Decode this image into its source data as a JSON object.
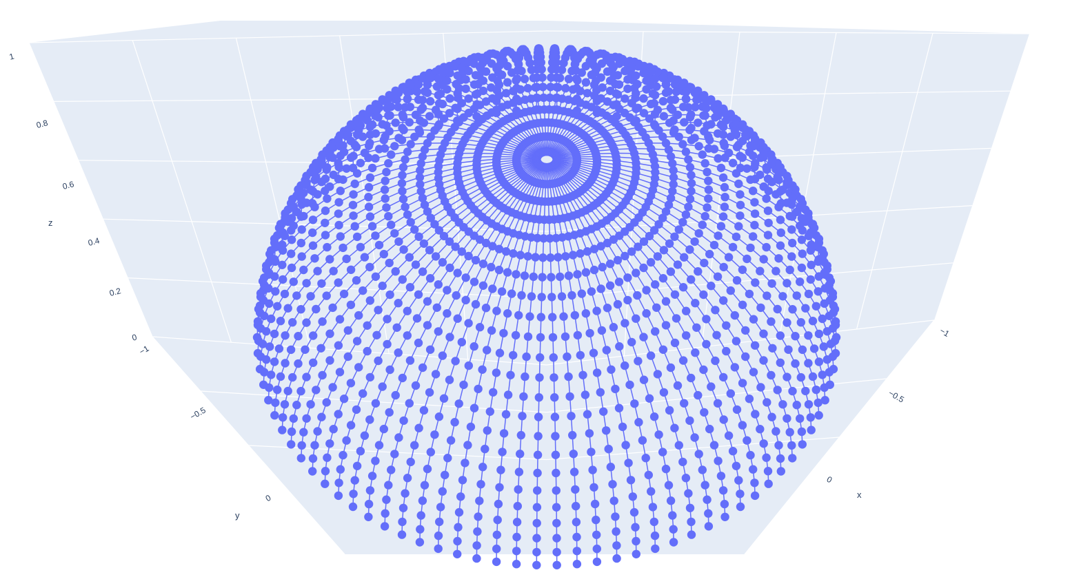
{
  "chart_data": {
    "type": "scatter",
    "subtype": "scatter3d-markers+lines",
    "surface": "upper hemisphere",
    "title": "",
    "series": [
      {
        "name": "",
        "color": "#636efa",
        "lat_deg_start": 0,
        "lat_deg_end": 90,
        "lat_deg_step": 4,
        "lon_deg_step": 4,
        "radius": 1
      }
    ],
    "axes": {
      "x": {
        "label": "x",
        "range": [
          -1,
          1
        ],
        "ticks": [
          "−1",
          "−0.5",
          "0"
        ]
      },
      "y": {
        "label": "y",
        "range": [
          -1,
          1
        ],
        "ticks": [
          "−1",
          "−0.5",
          "0"
        ]
      },
      "z": {
        "label": "z",
        "range": [
          0,
          1
        ],
        "ticks": [
          "0",
          "0.2",
          "0.4",
          "0.6",
          "0.8",
          "1"
        ]
      }
    },
    "scene_background": "#e5ecf6",
    "grid": true,
    "grid_color": "#ffffff",
    "tick_color": "#2a3f5f"
  }
}
